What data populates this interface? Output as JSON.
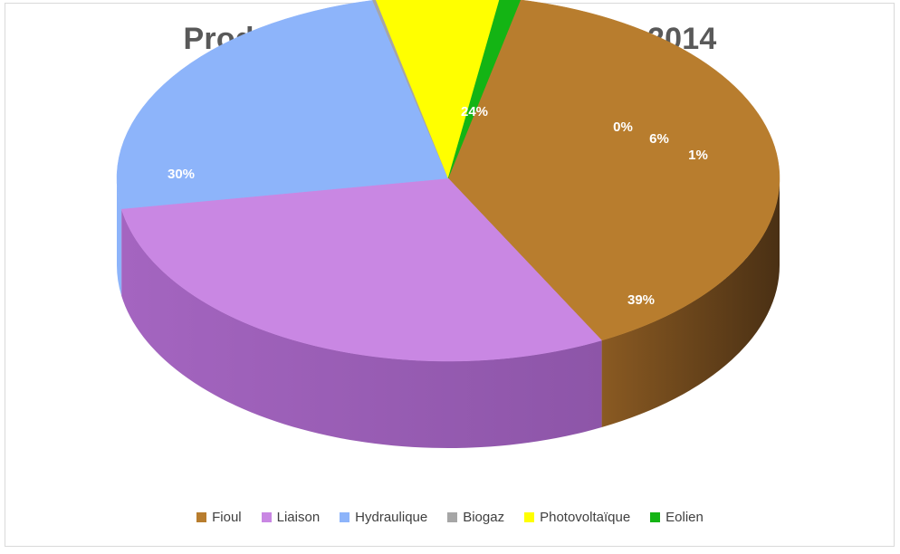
{
  "chart_data": {
    "type": "pie",
    "title": "Production électrique annuelle 2014",
    "categories": [
      "Fioul",
      "Liaison",
      "Hydraulique",
      "Biogaz",
      "Photovoltaïque",
      "Eolien"
    ],
    "values": [
      39,
      30,
      24,
      0,
      6,
      1
    ],
    "data_labels": [
      "39%",
      "30%",
      "24%",
      "0%",
      "6%",
      "1%"
    ],
    "colors": [
      "#b87d2e",
      "#c987e3",
      "#8db4fa",
      "#a6a6a6",
      "#ffff00",
      "#14b414"
    ],
    "legend_position": "bottom",
    "style": "3d"
  }
}
